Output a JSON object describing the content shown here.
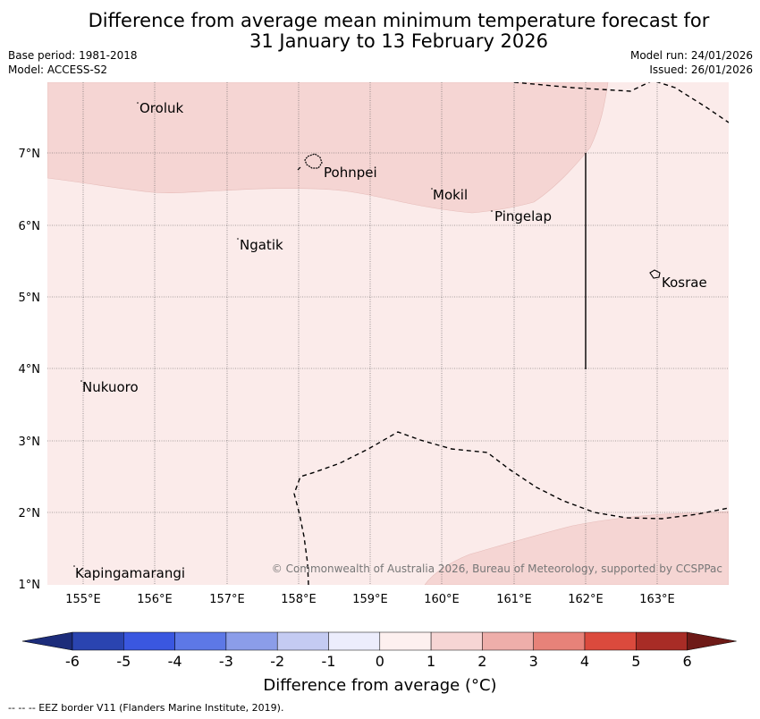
{
  "title": {
    "line1": "Difference from average mean minimum temperature forecast for",
    "line2": "31 January to 13 February 2026"
  },
  "meta": {
    "base_period": "Base period: 1981-2018",
    "model": "Model: ACCESS-S2",
    "model_run": "Model run: 24/01/2026",
    "issued": "Issued: 26/01/2026"
  },
  "axes": {
    "lon_labels": [
      "155°E",
      "156°E",
      "157°E",
      "158°E",
      "159°E",
      "160°E",
      "161°E",
      "162°E",
      "163°E"
    ],
    "lat_labels": [
      "7°N",
      "6°N",
      "5°N",
      "4°N",
      "3°N",
      "2°N",
      "1°N"
    ]
  },
  "places": [
    {
      "name": "Oroluk",
      "lon": 155.76,
      "lat": 7.72
    },
    {
      "name": "Pohnpei",
      "lon": 158.25,
      "lat": 6.88
    },
    {
      "name": "Mokil",
      "lon": 159.86,
      "lat": 6.48
    },
    {
      "name": "Pingelap",
      "lon": 160.7,
      "lat": 6.2
    },
    {
      "name": "Ngatik",
      "lon": 157.14,
      "lat": 5.8
    },
    {
      "name": "Kosrae",
      "lon": 162.98,
      "lat": 5.32
    },
    {
      "name": "Nukuoro",
      "lon": 154.97,
      "lat": 3.84
    },
    {
      "name": "Kapingamarangi",
      "lon": 154.88,
      "lat": 1.08
    }
  ],
  "copyright": "© Commonwealth of Australia 2026, Bureau of Meteorology, supported by CCSPPac",
  "colorbar": {
    "label": "Difference from average (°C)",
    "ticks": [
      "-6",
      "-5",
      "-4",
      "-3",
      "-2",
      "-1",
      "0",
      "1",
      "2",
      "3",
      "4",
      "5",
      "6"
    ],
    "colors": [
      "#1c2c7a",
      "#2a44b0",
      "#3a57e0",
      "#5d78e6",
      "#8b9de9",
      "#c4cbf2",
      "#ecedfc",
      "#fdf0ef",
      "#f6d5d4",
      "#eeaeaa",
      "#e78279",
      "#db4a3d",
      "#a82c26",
      "#6e1a17"
    ]
  },
  "footer": "--  --  -- EEZ border V11 (Flanders Marine Institute, 2019)."
}
